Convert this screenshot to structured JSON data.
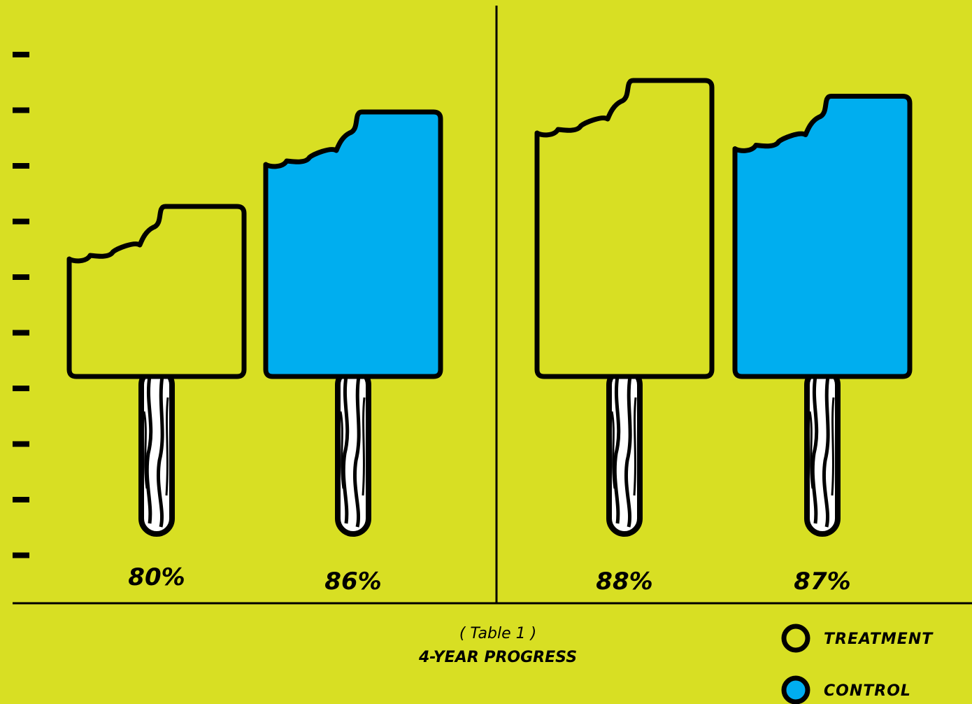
{
  "chart_data": {
    "type": "bar",
    "caption_sub": "( Table 1 )",
    "title": "4-YEAR PROGRESS",
    "categories": [
      "",
      ""
    ],
    "series": [
      {
        "name": "TREATMENT",
        "values": [
          80,
          88
        ]
      },
      {
        "name": "CONTROL",
        "values": [
          86,
          87
        ]
      }
    ],
    "value_labels": [
      "80%",
      "86%",
      "88%",
      "87%"
    ],
    "y_ticks": 10,
    "legend_position": "bottom-right"
  },
  "colors": {
    "background": "#d8df23",
    "treatment": "#d8df23",
    "control": "#00aeef",
    "outline": "#000000"
  }
}
